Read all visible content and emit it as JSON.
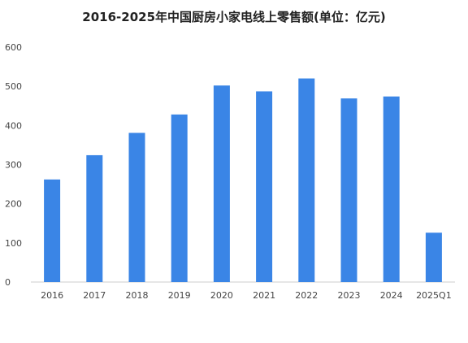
{
  "chart_data": {
    "type": "bar",
    "title": "2016-2025年中国厨房小家电线上零售额(单位：亿元)",
    "categories": [
      "2016",
      "2017",
      "2018",
      "2019",
      "2020",
      "2021",
      "2022",
      "2023",
      "2024",
      "2025Q1"
    ],
    "values": [
      262,
      324,
      381,
      428,
      502,
      487,
      520,
      469,
      474,
      126
    ],
    "ylim": [
      0,
      600
    ],
    "yticks": [
      0,
      100,
      200,
      300,
      400,
      500,
      600
    ],
    "grid": false,
    "bar_color": "#3a85e6",
    "axis_color": "#cccccc"
  }
}
